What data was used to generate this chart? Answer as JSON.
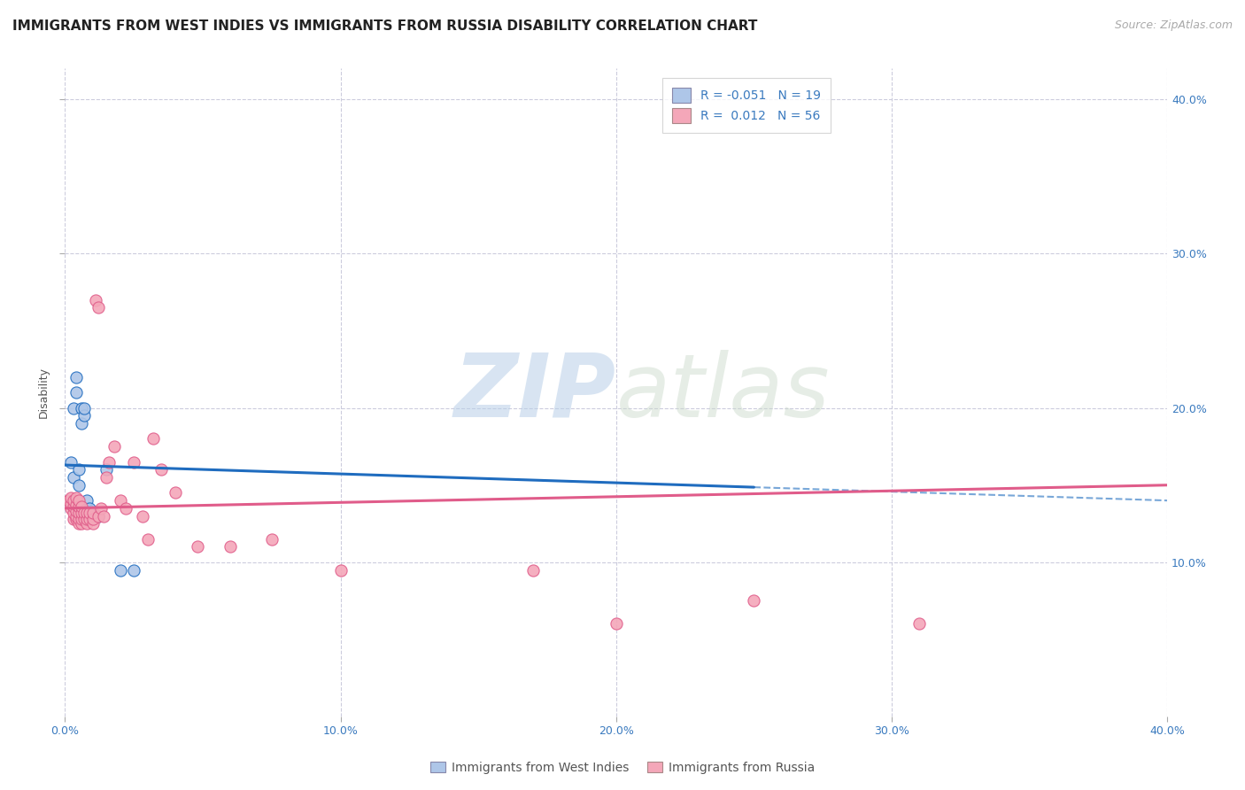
{
  "title": "IMMIGRANTS FROM WEST INDIES VS IMMIGRANTS FROM RUSSIA DISABILITY CORRELATION CHART",
  "source": "Source: ZipAtlas.com",
  "xlabel": "",
  "ylabel": "Disability",
  "xlim": [
    0.0,
    0.4
  ],
  "ylim": [
    0.0,
    0.42
  ],
  "xticks": [
    0.0,
    0.1,
    0.2,
    0.3,
    0.4
  ],
  "yticks": [
    0.1,
    0.2,
    0.3,
    0.4
  ],
  "ytick_labels": [
    "10.0%",
    "20.0%",
    "30.0%",
    "40.0%"
  ],
  "xtick_labels": [
    "0.0%",
    "10.0%",
    "20.0%",
    "30.0%",
    "40.0%"
  ],
  "legend1_R": "-0.051",
  "legend1_N": "19",
  "legend2_R": "0.012",
  "legend2_N": "56",
  "blue_color": "#aec6e8",
  "pink_color": "#f4a7b9",
  "blue_line_color": "#1f6cbf",
  "pink_line_color": "#e05c8a",
  "watermark_zip": "ZIP",
  "watermark_atlas": "atlas",
  "background_color": "#ffffff",
  "grid_color": "#ccccdd",
  "title_fontsize": 11,
  "axis_label_fontsize": 9,
  "tick_fontsize": 9,
  "legend_fontsize": 10,
  "source_fontsize": 9,
  "blue_scatter_x": [
    0.002,
    0.003,
    0.003,
    0.004,
    0.004,
    0.005,
    0.005,
    0.006,
    0.006,
    0.007,
    0.007,
    0.008,
    0.008,
    0.009,
    0.01,
    0.012,
    0.015,
    0.02,
    0.025
  ],
  "blue_scatter_y": [
    0.165,
    0.155,
    0.2,
    0.21,
    0.22,
    0.15,
    0.16,
    0.19,
    0.2,
    0.195,
    0.2,
    0.135,
    0.14,
    0.135,
    0.13,
    0.13,
    0.16,
    0.095,
    0.095
  ],
  "pink_scatter_x": [
    0.001,
    0.002,
    0.002,
    0.002,
    0.003,
    0.003,
    0.003,
    0.003,
    0.004,
    0.004,
    0.004,
    0.004,
    0.004,
    0.005,
    0.005,
    0.005,
    0.005,
    0.005,
    0.006,
    0.006,
    0.006,
    0.006,
    0.007,
    0.007,
    0.008,
    0.008,
    0.008,
    0.009,
    0.009,
    0.01,
    0.01,
    0.01,
    0.011,
    0.012,
    0.012,
    0.013,
    0.014,
    0.015,
    0.016,
    0.018,
    0.02,
    0.022,
    0.025,
    0.028,
    0.03,
    0.032,
    0.035,
    0.04,
    0.048,
    0.06,
    0.075,
    0.1,
    0.17,
    0.2,
    0.25,
    0.31
  ],
  "pink_scatter_y": [
    0.14,
    0.135,
    0.138,
    0.142,
    0.128,
    0.132,
    0.136,
    0.14,
    0.128,
    0.13,
    0.133,
    0.137,
    0.142,
    0.125,
    0.128,
    0.132,
    0.136,
    0.14,
    0.125,
    0.128,
    0.132,
    0.136,
    0.128,
    0.132,
    0.125,
    0.128,
    0.132,
    0.128,
    0.132,
    0.125,
    0.128,
    0.132,
    0.27,
    0.265,
    0.13,
    0.135,
    0.13,
    0.155,
    0.165,
    0.175,
    0.14,
    0.135,
    0.165,
    0.13,
    0.115,
    0.18,
    0.16,
    0.145,
    0.11,
    0.11,
    0.115,
    0.095,
    0.095,
    0.06,
    0.075,
    0.06
  ],
  "blue_line_x0": 0.0,
  "blue_line_y0": 0.163,
  "blue_line_x1": 0.4,
  "blue_line_y1": 0.14,
  "blue_line_solid_end": 0.25,
  "pink_line_x0": 0.0,
  "pink_line_y0": 0.135,
  "pink_line_x1": 0.4,
  "pink_line_y1": 0.15
}
